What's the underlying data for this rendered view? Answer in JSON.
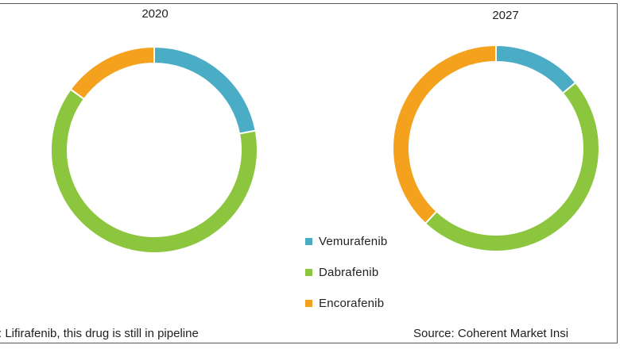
{
  "chart_data": [
    {
      "type": "pie",
      "title": "2020",
      "categories": [
        "Vemurafenib",
        "Dabrafenib",
        "Encorafenib"
      ],
      "values": [
        22,
        63,
        15
      ],
      "colors": [
        "#4bacc6",
        "#8cc63f",
        "#f4a21d"
      ],
      "style": "donut"
    },
    {
      "type": "pie",
      "title": "2027",
      "categories": [
        "Vemurafenib",
        "Dabrafenib",
        "Encorafenib"
      ],
      "values": [
        14,
        48,
        38
      ],
      "colors": [
        "#4bacc6",
        "#8cc63f",
        "#f4a21d"
      ],
      "style": "donut"
    }
  ],
  "legend": {
    "placement": "bottom-center",
    "items": [
      {
        "label": "Vemurafenib",
        "color": "#4bacc6"
      },
      {
        "label": "Dabrafenib",
        "color": "#8cc63f"
      },
      {
        "label": "Encorafenib",
        "color": "#f4a21d"
      }
    ]
  },
  "footer": {
    "note": ": Lifirafenib, this drug is still in pipeline",
    "source": "Source: Coherent Market Insi"
  }
}
